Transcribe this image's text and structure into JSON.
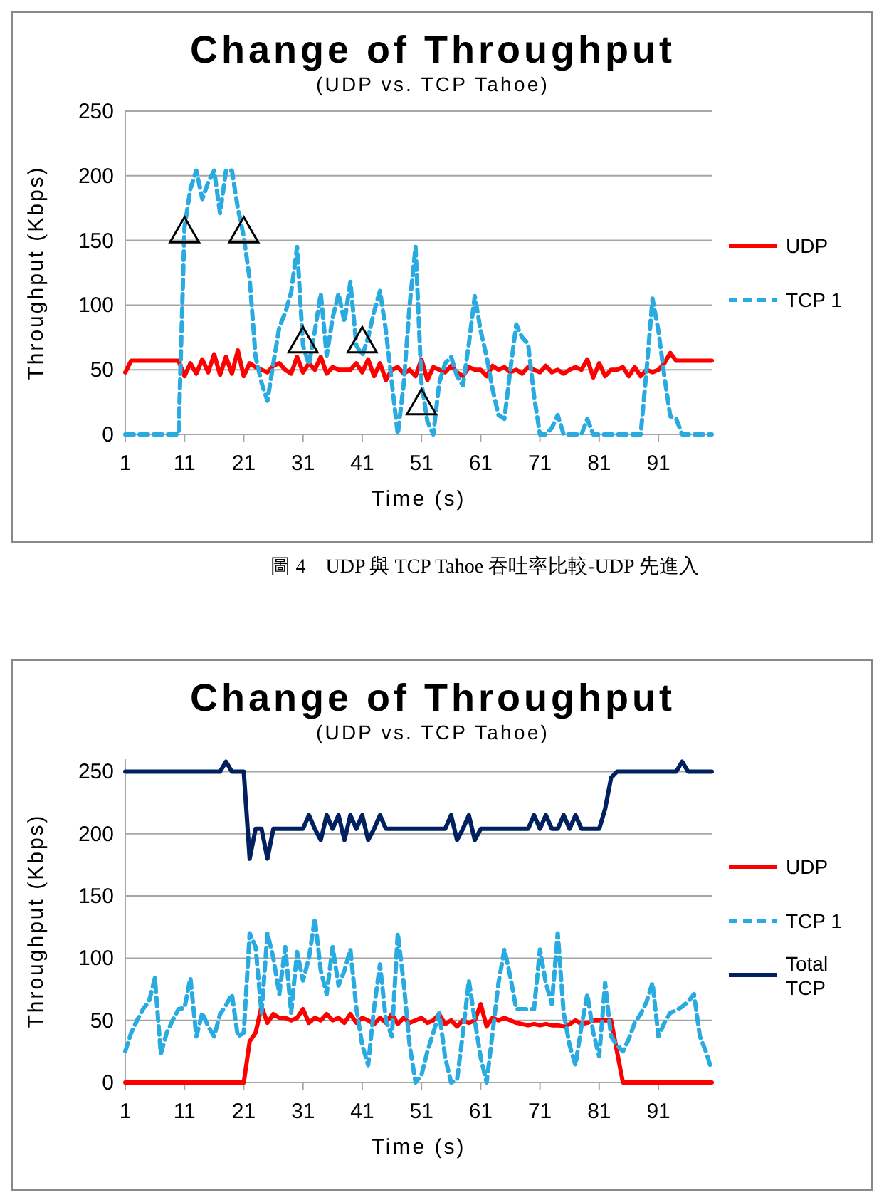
{
  "chart_data": [
    {
      "type": "line",
      "title": "Change of Throughput",
      "subtitle": "(UDP vs. TCP Tahoe)",
      "xlabel": "Time (s)",
      "ylabel": "Throughput (Kbps)",
      "annotations": [
        "圖 4　UDP 與 TCP Tahoe 吞吐率比較-UDP 先進入"
      ],
      "x": [
        1,
        2,
        3,
        4,
        5,
        6,
        7,
        8,
        9,
        10,
        11,
        12,
        13,
        14,
        15,
        16,
        17,
        18,
        19,
        20,
        21,
        22,
        23,
        24,
        25,
        26,
        27,
        28,
        29,
        30,
        31,
        32,
        33,
        34,
        35,
        36,
        37,
        38,
        39,
        40,
        41,
        42,
        43,
        44,
        45,
        46,
        47,
        48,
        49,
        50,
        51,
        52,
        53,
        54,
        55,
        56,
        57,
        58,
        59,
        60,
        61,
        62,
        63,
        64,
        65,
        66,
        67,
        68,
        69,
        70,
        71,
        72,
        73,
        74,
        75,
        76,
        77,
        78,
        79,
        80,
        81,
        82,
        83,
        84,
        85,
        86,
        87,
        88,
        89,
        90,
        91,
        92,
        93,
        94,
        95,
        96,
        97,
        98,
        99,
        100
      ],
      "xlim": [
        1,
        100
      ],
      "xticks": [
        1,
        11,
        21,
        31,
        41,
        51,
        61,
        71,
        81,
        91
      ],
      "ylim": [
        0,
        250
      ],
      "yticks": [
        0,
        50,
        100,
        150,
        200,
        250
      ],
      "grid": "y",
      "legend": "right",
      "marker": "none",
      "series": [
        {
          "name": "UDP",
          "color": "#ff0000",
          "line_style": "solid",
          "values": [
            48,
            57,
            57,
            57,
            57,
            57,
            57,
            57,
            57,
            57,
            45,
            55,
            47,
            58,
            48,
            62,
            46,
            60,
            47,
            65,
            45,
            55,
            52,
            50,
            48,
            53,
            55,
            50,
            47,
            60,
            48,
            55,
            50,
            60,
            47,
            52,
            50,
            50,
            50,
            55,
            48,
            58,
            45,
            55,
            42,
            50,
            52,
            47,
            50,
            45,
            58,
            42,
            52,
            50,
            48,
            53,
            48,
            45,
            52,
            50,
            50,
            45,
            53,
            50,
            52,
            48,
            50,
            47,
            52,
            50,
            48,
            53,
            48,
            50,
            47,
            50,
            52,
            50,
            58,
            44,
            55,
            45,
            50,
            50,
            52,
            45,
            52,
            45,
            50,
            48,
            50,
            55,
            63,
            57,
            57,
            57,
            57,
            57,
            57,
            57
          ]
        },
        {
          "name": "TCP 1",
          "color": "#29abe2",
          "line_style": "dashed",
          "values": [
            0,
            0,
            0,
            0,
            0,
            0,
            0,
            0,
            0,
            0,
            160,
            190,
            204,
            182,
            195,
            204,
            171,
            204,
            204,
            175,
            153,
            120,
            60,
            40,
            26,
            55,
            83,
            94,
            110,
            145,
            69,
            54,
            80,
            109,
            61,
            90,
            109,
            87,
            118,
            69,
            61,
            75,
            95,
            111,
            80,
            40,
            0,
            39,
            100,
            145,
            40,
            10,
            0,
            40,
            55,
            60,
            45,
            38,
            70,
            107,
            80,
            60,
            35,
            15,
            12,
            50,
            85,
            75,
            70,
            30,
            0,
            0,
            5,
            15,
            0,
            0,
            0,
            0,
            12,
            0,
            0,
            0,
            0,
            0,
            0,
            0,
            0,
            0,
            50,
            105,
            80,
            45,
            14,
            12,
            0,
            0,
            0,
            0,
            0,
            0
          ]
        },
        {
          "type": "scatter",
          "marker": "triangle",
          "color": "#000000",
          "x": [
            11,
            21,
            31,
            41,
            51
          ],
          "values": [
            155,
            155,
            70,
            70,
            22
          ]
        }
      ]
    },
    {
      "type": "line",
      "title": "Change of Throughput",
      "subtitle": "(UDP vs. TCP Tahoe)",
      "xlabel": "Time (s)",
      "ylabel": "Throughput (Kbps)",
      "x": [
        1,
        2,
        3,
        4,
        5,
        6,
        7,
        8,
        9,
        10,
        11,
        12,
        13,
        14,
        15,
        16,
        17,
        18,
        19,
        20,
        21,
        22,
        23,
        24,
        25,
        26,
        27,
        28,
        29,
        30,
        31,
        32,
        33,
        34,
        35,
        36,
        37,
        38,
        39,
        40,
        41,
        42,
        43,
        44,
        45,
        46,
        47,
        48,
        49,
        50,
        51,
        52,
        53,
        54,
        55,
        56,
        57,
        58,
        59,
        60,
        61,
        62,
        63,
        64,
        65,
        66,
        67,
        68,
        69,
        70,
        71,
        72,
        73,
        74,
        75,
        76,
        77,
        78,
        79,
        80,
        81,
        82,
        83,
        84,
        85,
        86,
        87,
        88,
        89,
        90,
        91,
        92,
        93,
        94,
        95,
        96,
        97,
        98,
        99,
        100
      ],
      "xlim": [
        1,
        100
      ],
      "xticks": [
        1,
        11,
        21,
        31,
        41,
        51,
        61,
        71,
        81,
        91
      ],
      "ylim": [
        0,
        260
      ],
      "yticks": [
        0,
        50,
        100,
        150,
        200,
        250
      ],
      "grid": "y",
      "legend": "right",
      "marker": "none",
      "series": [
        {
          "name": "UDP",
          "color": "#ff0000",
          "line_style": "solid",
          "values": [
            0,
            0,
            0,
            0,
            0,
            0,
            0,
            0,
            0,
            0,
            0,
            0,
            0,
            0,
            0,
            0,
            0,
            0,
            0,
            0,
            0,
            33,
            40,
            61,
            48,
            55,
            52,
            52,
            50,
            52,
            59,
            48,
            52,
            50,
            55,
            50,
            52,
            48,
            55,
            48,
            52,
            50,
            47,
            52,
            48,
            55,
            47,
            52,
            48,
            50,
            52,
            48,
            50,
            55,
            47,
            50,
            45,
            50,
            48,
            50,
            63,
            45,
            52,
            50,
            52,
            50,
            48,
            47,
            46,
            47,
            46,
            47,
            46,
            46,
            45,
            47,
            50,
            47,
            48,
            50,
            50,
            50,
            50,
            25,
            0,
            0,
            0,
            0,
            0,
            0,
            0,
            0,
            0,
            0,
            0,
            0,
            0,
            0,
            0,
            0
          ]
        },
        {
          "name": "TCP 1",
          "color": "#29abe2",
          "line_style": "dashed",
          "values": [
            25,
            40,
            50,
            59,
            65,
            84,
            23,
            40,
            50,
            59,
            60,
            84,
            37,
            56,
            45,
            37,
            55,
            62,
            71,
            37,
            40,
            120,
            109,
            56,
            120,
            100,
            71,
            109,
            56,
            105,
            82,
            100,
            132,
            90,
            71,
            109,
            78,
            90,
            107,
            60,
            30,
            14,
            60,
            95,
            50,
            37,
            120,
            80,
            30,
            0,
            6,
            25,
            40,
            56,
            20,
            0,
            2,
            40,
            82,
            50,
            20,
            0,
            40,
            80,
            107,
            85,
            59,
            59,
            59,
            59,
            107,
            80,
            63,
            120,
            56,
            30,
            14,
            45,
            71,
            40,
            21,
            80,
            37,
            30,
            25,
            35,
            48,
            55,
            65,
            80,
            37,
            48,
            56,
            58,
            61,
            65,
            71,
            37,
            25,
            10
          ]
        },
        {
          "name": "Total TCP",
          "color": "#002060",
          "line_style": "solid",
          "values": [
            250,
            250,
            250,
            250,
            250,
            250,
            250,
            250,
            250,
            250,
            250,
            250,
            250,
            250,
            250,
            250,
            250,
            258,
            250,
            250,
            250,
            180,
            204,
            204,
            180,
            204,
            204,
            204,
            204,
            204,
            204,
            215,
            204,
            195,
            215,
            204,
            215,
            195,
            215,
            204,
            215,
            195,
            204,
            215,
            204,
            204,
            204,
            204,
            204,
            204,
            204,
            204,
            204,
            204,
            204,
            215,
            195,
            204,
            215,
            195,
            204,
            204,
            204,
            204,
            204,
            204,
            204,
            204,
            204,
            215,
            204,
            215,
            204,
            204,
            215,
            204,
            215,
            204,
            204,
            204,
            204,
            220,
            245,
            250,
            250,
            250,
            250,
            250,
            250,
            250,
            250,
            250,
            250,
            250,
            258,
            250,
            250,
            250,
            250,
            250
          ]
        }
      ]
    }
  ]
}
